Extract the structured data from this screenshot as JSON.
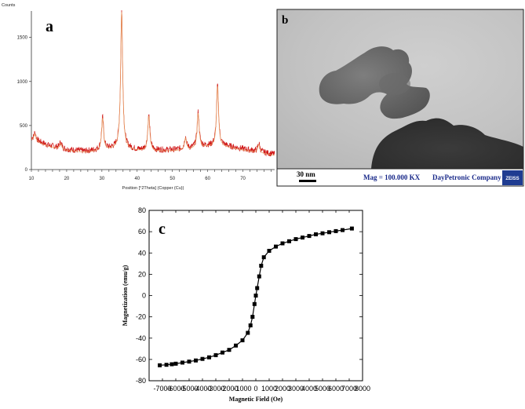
{
  "panels": {
    "a": "a",
    "b": "b",
    "c": "c"
  },
  "chart_data": [
    {
      "type": "line",
      "panel": "a",
      "title": "",
      "ylabel": "Counts",
      "xlabel": "Position [°2Theta] (Copper (Cu))",
      "xlim": [
        10,
        79
      ],
      "ylim": [
        0,
        1800
      ],
      "xticks": [
        10,
        20,
        30,
        40,
        50,
        60,
        70
      ],
      "yticks": [
        0,
        500,
        1000,
        1500
      ],
      "colors": {
        "raw": "#d01818",
        "fit": "#e8a060"
      },
      "baseline": [
        [
          10,
          350
        ],
        [
          15,
          275
        ],
        [
          20,
          230
        ],
        [
          25,
          210
        ],
        [
          30,
          225
        ],
        [
          35,
          250
        ],
        [
          40,
          225
        ],
        [
          45,
          220
        ],
        [
          50,
          225
        ],
        [
          55,
          240
        ],
        [
          60,
          270
        ],
        [
          65,
          270
        ],
        [
          70,
          235
        ],
        [
          75,
          200
        ],
        [
          79,
          175
        ]
      ],
      "peaks": [
        {
          "x": 11.0,
          "y": 420
        },
        {
          "x": 18.3,
          "y": 310
        },
        {
          "x": 30.2,
          "y": 590
        },
        {
          "x": 35.6,
          "y": 1800
        },
        {
          "x": 43.3,
          "y": 620
        },
        {
          "x": 53.7,
          "y": 370
        },
        {
          "x": 57.3,
          "y": 650
        },
        {
          "x": 62.8,
          "y": 960
        },
        {
          "x": 74.5,
          "y": 300
        }
      ]
    },
    {
      "type": "scatter",
      "panel": "c",
      "title": "",
      "xlabel": "Magnetic Field (Oe)",
      "ylabel": "Magnetization (emu/g)",
      "xlim": [
        -8000,
        8000
      ],
      "ylim": [
        -80,
        80
      ],
      "xticks": [
        -8000,
        -7000,
        -6000,
        -5000,
        -4000,
        -3000,
        -2000,
        -1000,
        0,
        1000,
        2000,
        3000,
        4000,
        5000,
        6000,
        7000,
        8000
      ],
      "xtick_labels": [
        "",
        "-7000",
        "-6000",
        "-5000",
        "-4000",
        "-3000",
        "-2000",
        "-1000",
        "0",
        "1000",
        "2000",
        "3000",
        "4000",
        "5000",
        "6000",
        "7000",
        "8000"
      ],
      "yticks": [
        -80,
        -60,
        -40,
        -20,
        0,
        20,
        40,
        60,
        80
      ],
      "series": [
        {
          "x": [
            -7200,
            -6700,
            -6300,
            -6000,
            -5500,
            -5000,
            -4500,
            -4000,
            -3500,
            -3000,
            -2500,
            -2000,
            -1500,
            -1000,
            -600,
            -400,
            -250,
            -100,
            0,
            100,
            250,
            400,
            600,
            1000,
            1500,
            2000,
            2500,
            3000,
            3500,
            4000,
            4500,
            5000,
            5500,
            6000,
            6500,
            7200
          ],
          "y": [
            -65.5,
            -65,
            -64.5,
            -64,
            -63,
            -62,
            -61,
            -59.5,
            -58,
            -56,
            -53.5,
            -51,
            -47,
            -42,
            -35,
            -28,
            -20,
            -8,
            0,
            7,
            18,
            28,
            36,
            42,
            46,
            49,
            51,
            53,
            54.5,
            56,
            57.5,
            58.5,
            59.5,
            60.5,
            61.5,
            63
          ]
        }
      ]
    }
  ],
  "tem": {
    "scalebar_label": "30 nm",
    "mag_label": "Mag = 100.000 KX",
    "company_label": "DayPetronic Company",
    "logo_text": "ZEISS",
    "colors": {
      "caption_text": "#1a2a8a",
      "logo_bg": "#1f3c91"
    }
  }
}
